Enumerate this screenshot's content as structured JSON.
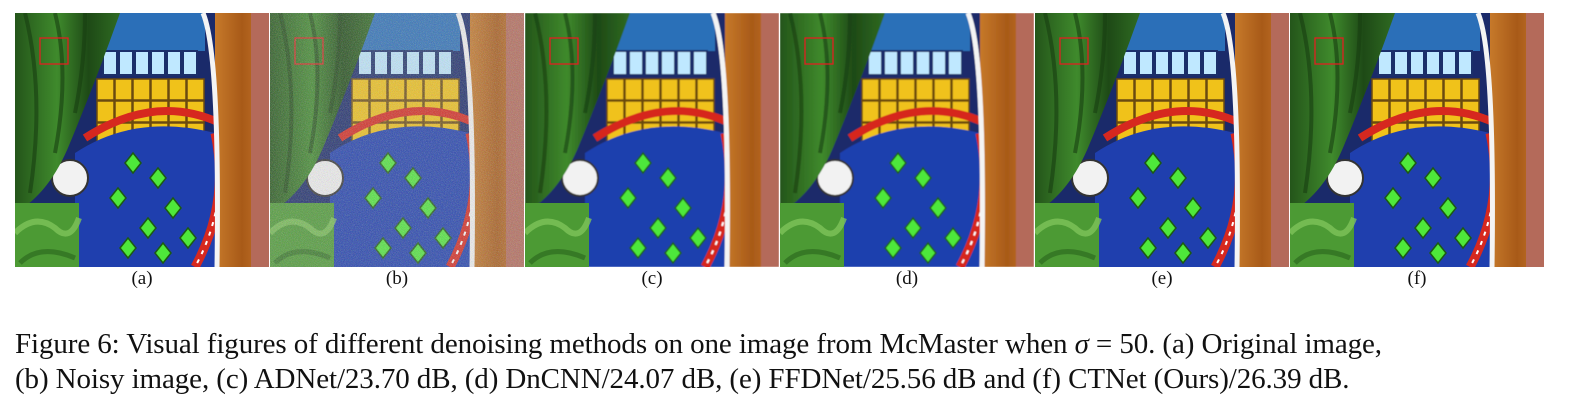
{
  "panels": [
    {
      "label": "(a)",
      "variant": "original"
    },
    {
      "label": "(b)",
      "variant": "noisy"
    },
    {
      "label": "(c)",
      "variant": "adnet"
    },
    {
      "label": "(d)",
      "variant": "dncnn"
    },
    {
      "label": "(e)",
      "variant": "ffdnet"
    },
    {
      "label": "(f)",
      "variant": "ctnet"
    }
  ],
  "caption": {
    "prefix": "Figure 6:",
    "line1_text": " Visual figures of different denoising methods on one image from McMaster when ",
    "sigma_symbol": "σ",
    "sigma_value": " = 50. (a) Original image,",
    "line2": "(b) Noisy image, (c) ADNet/23.70 dB, (d) DnCNN/24.07 dB, (e) FFDNet/25.56 dB and (f) CTNet (Ours)/26.39 dB."
  },
  "colors": {
    "curtain": "#2f6b22",
    "glass_blue": "#1f3fae",
    "glass_yellow": "#f0c21a",
    "leaf_green": "#4ee83a",
    "frame_red": "#d6281f",
    "wood": "#b8661e",
    "highlight_box": "#e02020"
  }
}
